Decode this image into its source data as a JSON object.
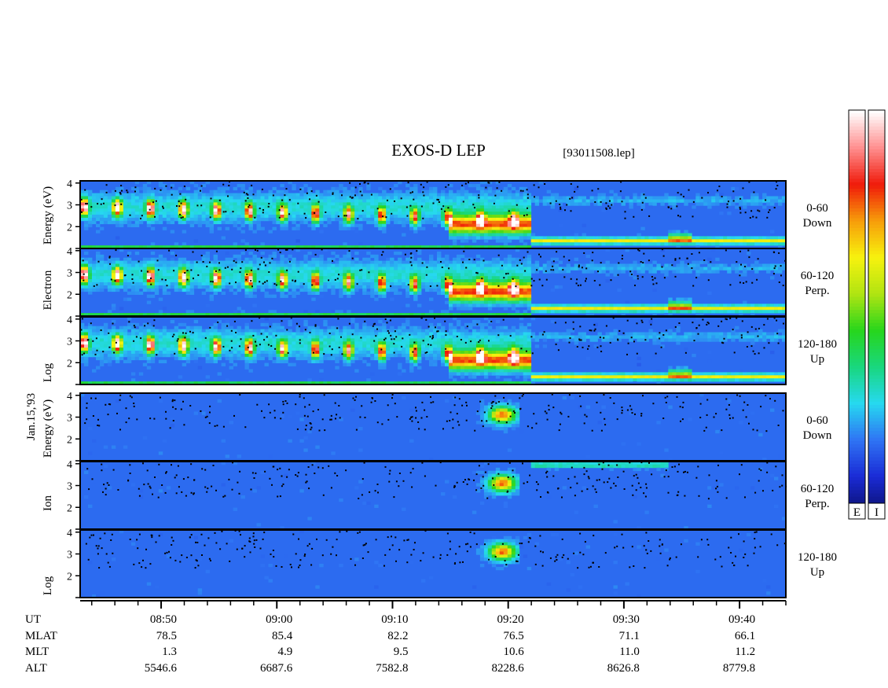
{
  "title": "EXOS-D LEP",
  "file_label": "[93011508.lep]",
  "date_label": "Jan.15,'93",
  "chart_data": {
    "type": "heatmap",
    "x_axis": {
      "quantity": "UT",
      "range_min": [
        8,
        43
      ],
      "range_max": [
        9,
        44
      ],
      "major_ticks": [
        "08:50",
        "09:00",
        "09:10",
        "09:20",
        "09:30",
        "09:40"
      ],
      "minor_tick_interval_min": 2
    },
    "groups": [
      {
        "species": "electron",
        "ylabel": "Log Electron Energy (eV)",
        "ylabel_words": [
          "Log",
          "Electron",
          "Energy (eV)"
        ],
        "panels": [
          {
            "pitch": "0-60",
            "direction": "Down",
            "ytick_labels": [
              "4",
              "3",
              "2"
            ],
            "ylim": [
              1,
              4.1
            ]
          },
          {
            "pitch": "60-120",
            "direction": "Perp.",
            "ytick_labels": [
              "4",
              "3",
              "2"
            ],
            "ylim": [
              1,
              4.1
            ]
          },
          {
            "pitch": "120-180",
            "direction": "Up",
            "ytick_labels": [
              "4",
              "3",
              "2"
            ],
            "ylim": [
              1,
              4.1
            ]
          }
        ]
      },
      {
        "species": "ion",
        "ylabel": "Log Ion Energy (eV)",
        "ylabel_words": [
          "Log",
          "Ion",
          "Energy (eV)"
        ],
        "panels": [
          {
            "pitch": "0-60",
            "direction": "Down",
            "ytick_labels": [
              "4",
              "3",
              "2"
            ],
            "ylim": [
              1,
              4.1
            ]
          },
          {
            "pitch": "60-120",
            "direction": "Perp.",
            "ytick_labels": [
              "4",
              "3",
              "2"
            ],
            "ylim": [
              1,
              4.1
            ]
          },
          {
            "pitch": "120-180",
            "direction": "Up",
            "ytick_labels": [
              "4",
              "3",
              "2"
            ],
            "ylim": [
              1,
              4.1
            ]
          }
        ]
      }
    ],
    "colorbars": [
      {
        "label": "E"
      },
      {
        "label": "I"
      }
    ],
    "colormap": [
      "#0b0f6e",
      "#1a2bd6",
      "#2f74f4",
      "#26d9f0",
      "#19d77e",
      "#27d61c",
      "#b0e412",
      "#f7f20e",
      "#f79d0a",
      "#f01a0a",
      "#ff8e8e",
      "#ffffff"
    ],
    "ephemeris": {
      "rows": [
        {
          "name": "UT",
          "values": [
            "08:50",
            "09:00",
            "09:10",
            "09:20",
            "09:30",
            "09:40"
          ]
        },
        {
          "name": "MLAT",
          "values": [
            "78.5",
            "85.4",
            "82.2",
            "76.5",
            "71.1",
            "66.1"
          ]
        },
        {
          "name": "MLT",
          "values": [
            "1.3",
            "4.9",
            "9.5",
            "10.6",
            "11.0",
            "11.2"
          ]
        },
        {
          "name": "ALT",
          "values": [
            "5546.6",
            "6687.6",
            "7582.8",
            "8228.6",
            "8626.8",
            "8779.8"
          ]
        }
      ]
    }
  }
}
